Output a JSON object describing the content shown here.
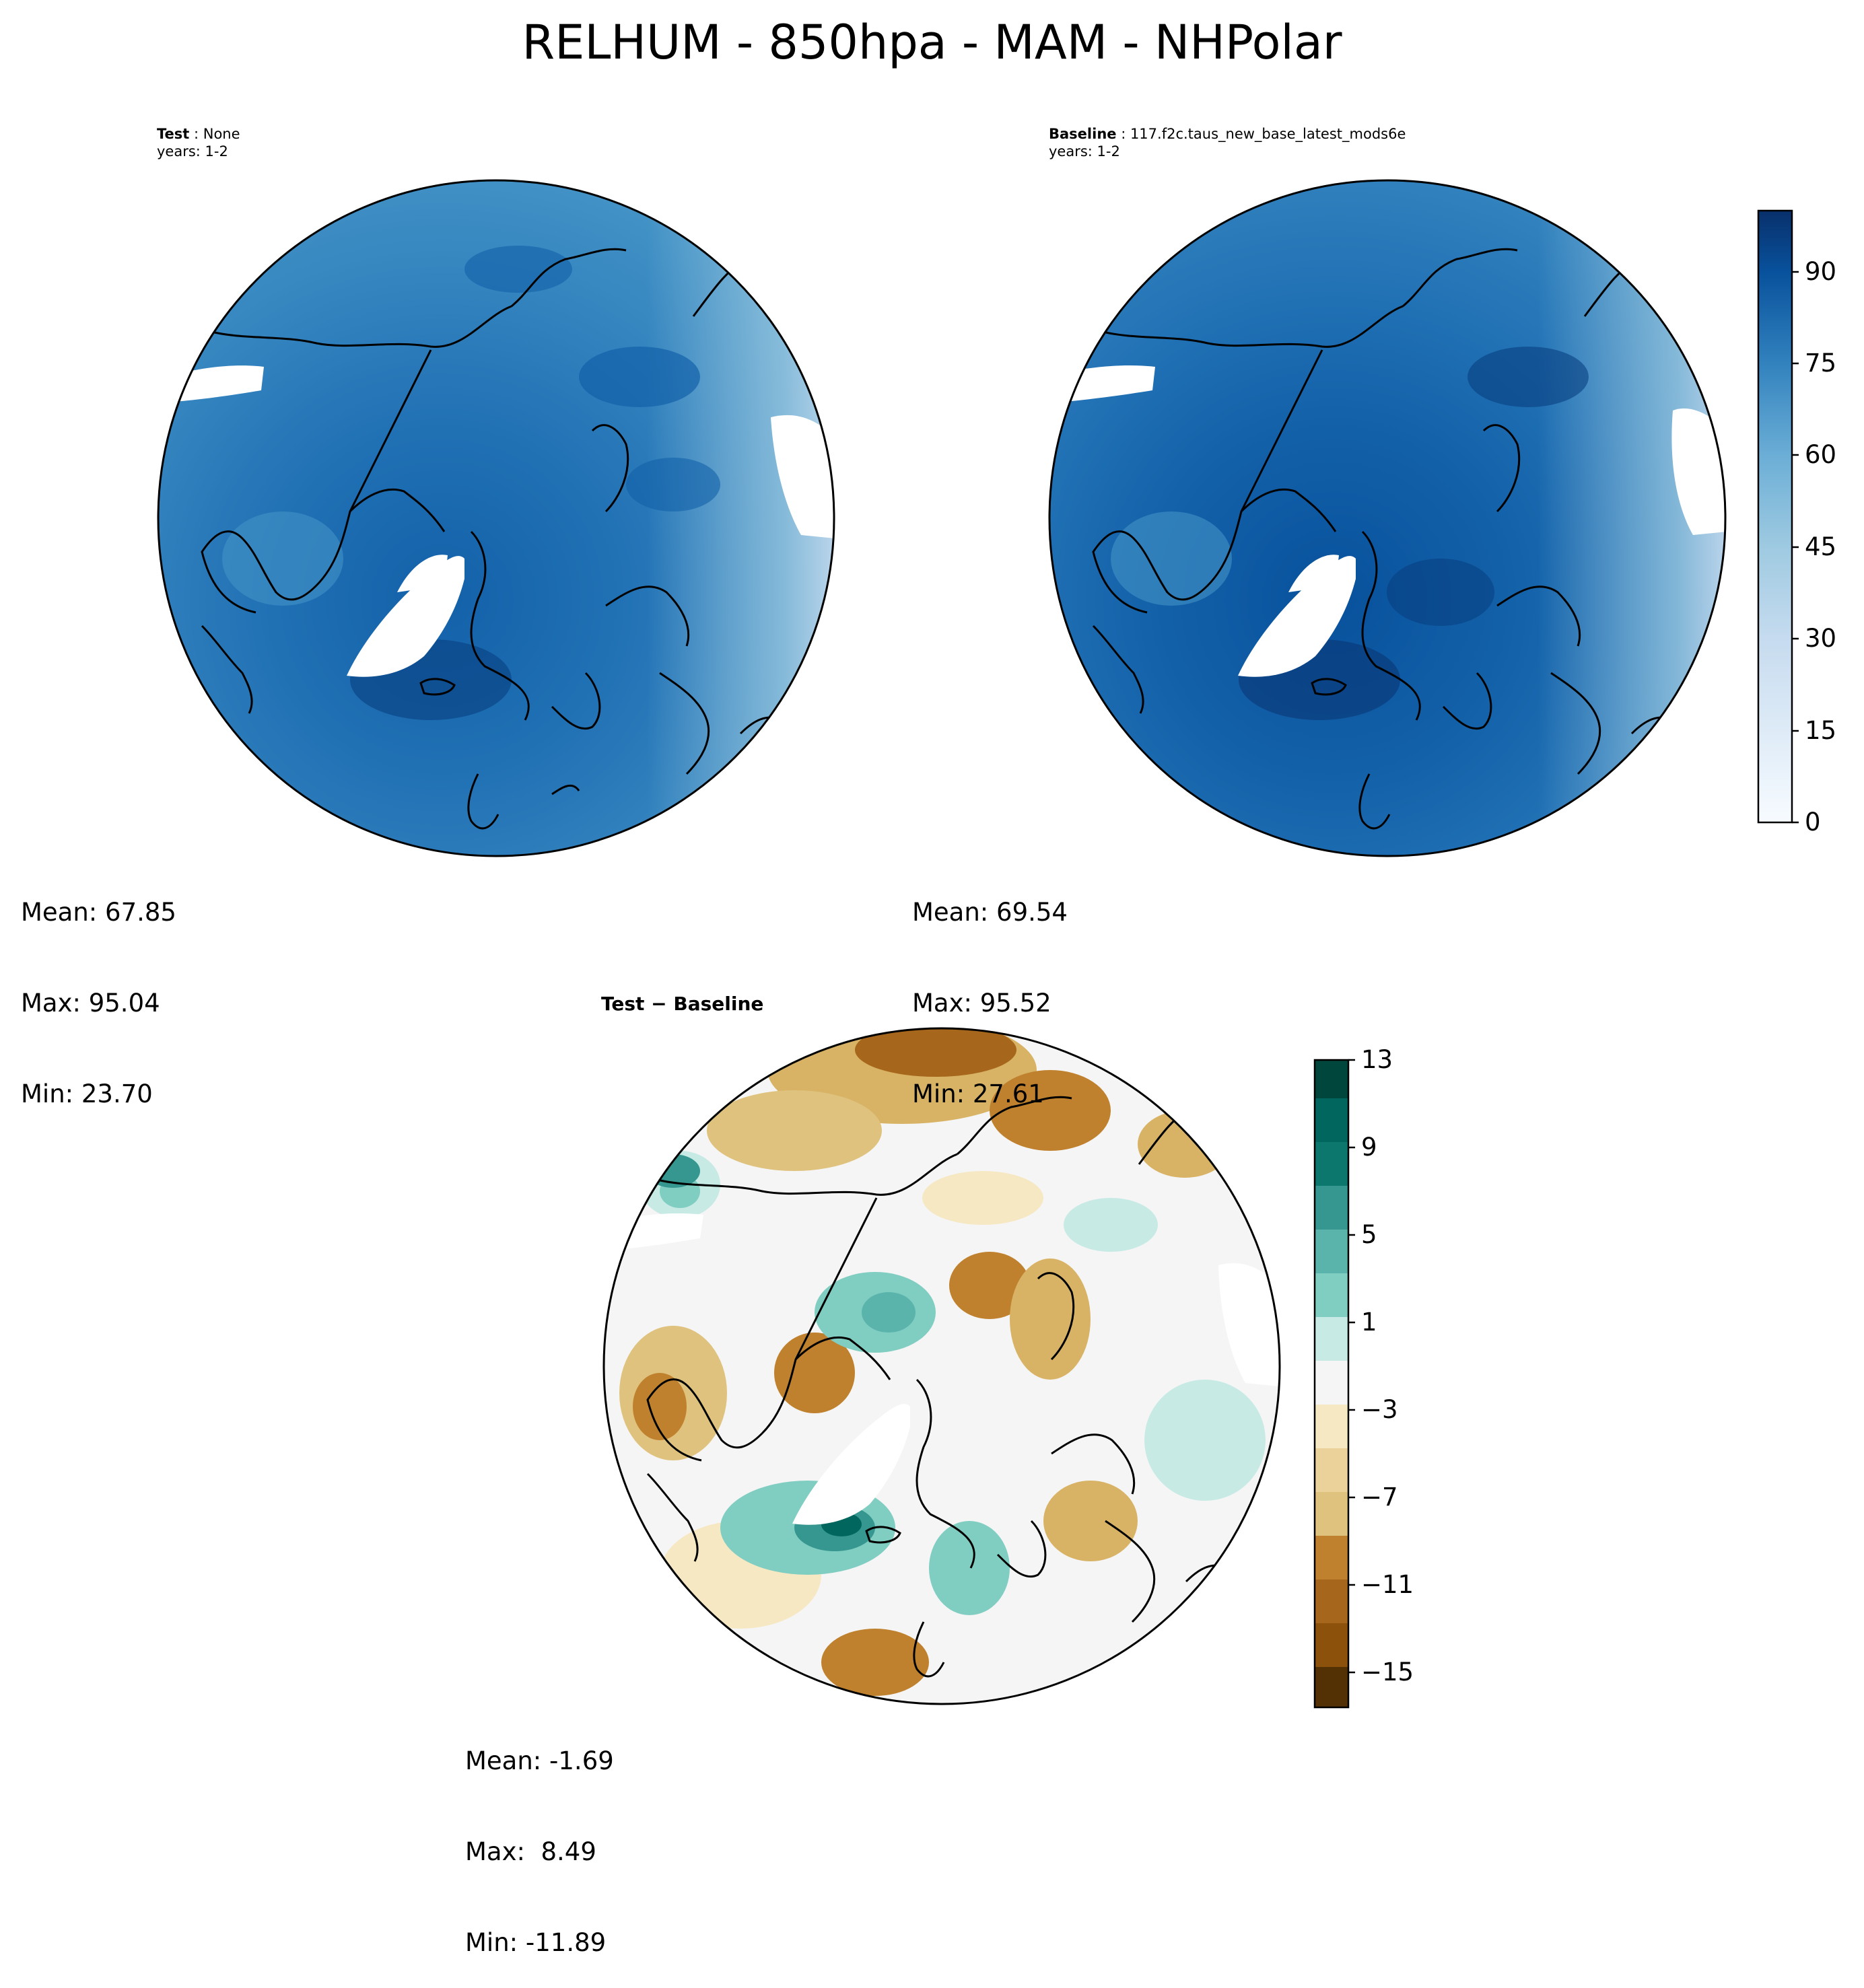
{
  "figure": {
    "suptitle": "RELHUM - 850hpa - MAM - NHPolar"
  },
  "panels": {
    "test": {
      "title_bold": "Test",
      "title_rest": " : None",
      "years": "years: 1-2",
      "stats": {
        "mean": "Mean: 67.85",
        "max": "Max: 95.04",
        "min": "Min: 23.70"
      }
    },
    "baseline": {
      "title_bold": "Baseline",
      "title_rest": " : 117.f2c.taus_new_base_latest_mods6e",
      "years": "years: 1-2",
      "stats": {
        "mean": "Mean: 69.54",
        "max": "Max: 95.52",
        "min": "Min: 27.61"
      }
    },
    "diff": {
      "title_bold": "Test − Baseline",
      "stats": {
        "mean": "Mean: -1.69",
        "max": "Max:  8.49",
        "min": "Min: -11.89"
      }
    }
  },
  "colorbars": {
    "relhum": {
      "ticks": [
        "90",
        "75",
        "60",
        "45",
        "30",
        "15",
        "0"
      ],
      "range": [
        0,
        100
      ],
      "palette": [
        "#f7fbff",
        "#eaf2fb",
        "#deebf7",
        "#d0e2f2",
        "#c6dbef",
        "#b4d3e9",
        "#9ecae1",
        "#85bcdb",
        "#6baed6",
        "#57a0ce",
        "#4292c6",
        "#3282be",
        "#2171b5",
        "#1361a9",
        "#08519c",
        "#083f80",
        "#08306b"
      ]
    },
    "diff": {
      "ticks": [
        "13",
        "9",
        "5",
        "1",
        "−3",
        "−7",
        "−11",
        "−15"
      ],
      "range": [
        -15,
        13
      ],
      "palette": [
        "#543005",
        "#8c510a",
        "#a6661b",
        "#bf812d",
        "#d8b365",
        "#dfc27d",
        "#f6e8c3",
        "#f5f5f5",
        "#d7eeeb",
        "#c7eae5",
        "#80cdc1",
        "#5ab4ac",
        "#35978f",
        "#01665e",
        "#00463c"
      ]
    }
  }
}
